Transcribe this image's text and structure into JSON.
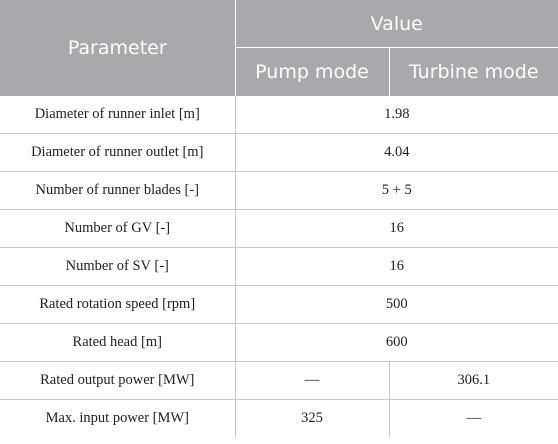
{
  "header": {
    "parameter": "Parameter",
    "value": "Value",
    "pump_mode": "Pump mode",
    "turbine_mode": "Turbine mode"
  },
  "rows": [
    {
      "param": "Diameter of runner inlet [m]",
      "value": "1.98"
    },
    {
      "param": "Diameter of runner outlet [m]",
      "value": "4.04"
    },
    {
      "param": "Number of runner blades [-]",
      "value": "5 + 5"
    },
    {
      "param": "Number of GV [-]",
      "value": "16"
    },
    {
      "param": "Number of SV [-]",
      "value": "16"
    },
    {
      "param": "Rated rotation speed [rpm]",
      "value": "500"
    },
    {
      "param": "Rated head [m]",
      "value": "600"
    },
    {
      "param": "Rated output power [MW]",
      "pump": "—",
      "turbine": "306.1"
    },
    {
      "param": "Max. input power [MW]",
      "pump": "325",
      "turbine": "—"
    }
  ]
}
